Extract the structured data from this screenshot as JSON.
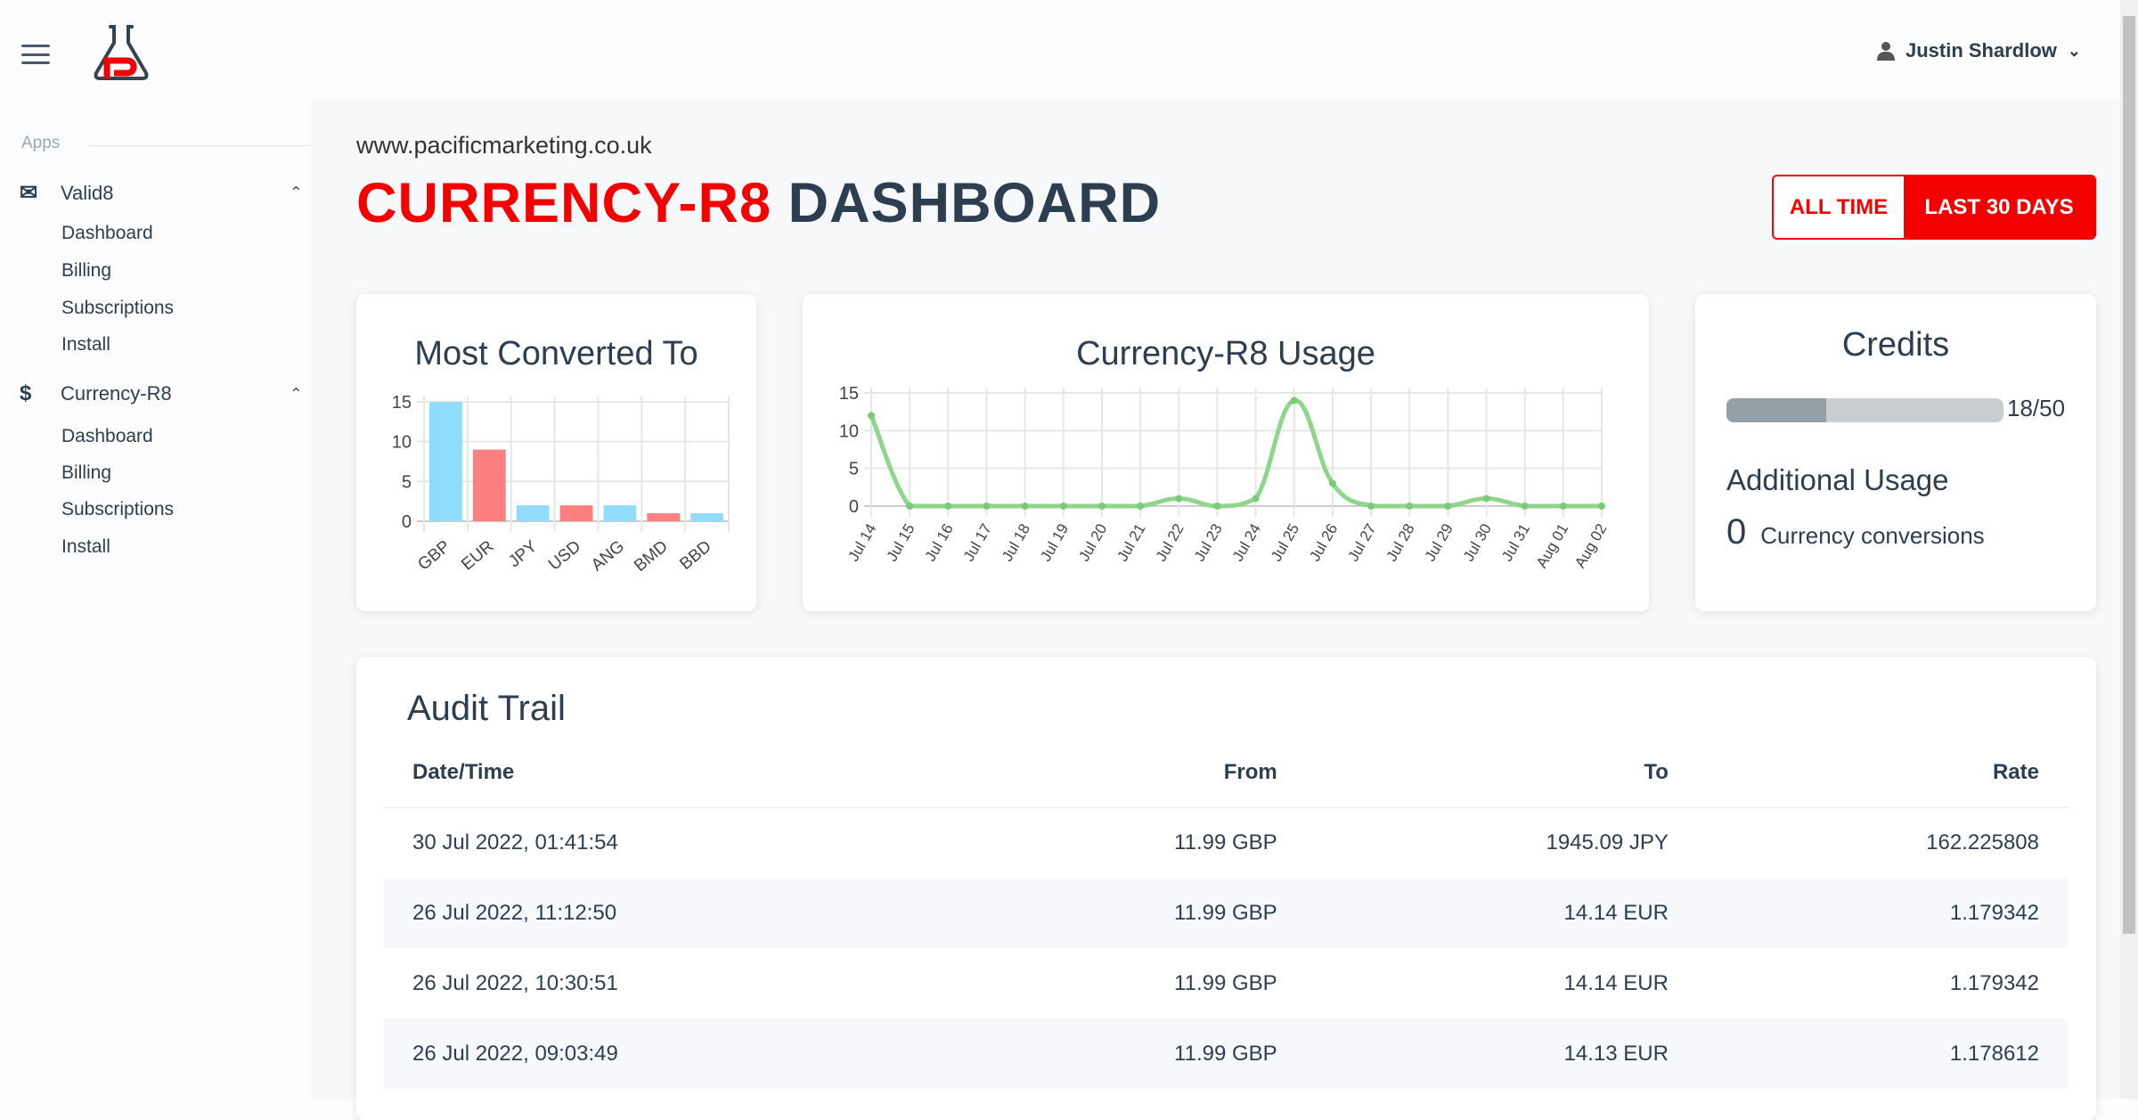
{
  "header": {
    "user_name": "Justin Shardlow",
    "logo_letter": "P"
  },
  "sidebar": {
    "section_label": "Apps",
    "groups": [
      {
        "label": "Valid8",
        "icon": "envelope-open-icon",
        "items": [
          "Dashboard",
          "Billing",
          "Subscriptions",
          "Install"
        ]
      },
      {
        "label": "Currency-R8",
        "icon": "dollar-icon",
        "items": [
          "Dashboard",
          "Billing",
          "Subscriptions",
          "Install"
        ]
      }
    ]
  },
  "page": {
    "site": "www.pacificmarketing.co.uk",
    "title_accent": "CURRENCY-R8",
    "title_rest": " DASHBOARD",
    "filters": {
      "all_time": "ALL TIME",
      "last_30": "LAST 30 DAYS",
      "active": "LAST 30 DAYS"
    }
  },
  "colors": {
    "accent": "#f50000",
    "text": "#2c3e50",
    "bar_blue": "#8fdcfd",
    "bar_red": "#fd7f7f",
    "line_green": "#8ed68a"
  },
  "credits": {
    "title": "Credits",
    "used": 18,
    "total": 50,
    "label": "18/50",
    "additional_title": "Additional Usage",
    "additional_count": "0",
    "additional_unit": "Currency conversions"
  },
  "chart_data": [
    {
      "type": "bar",
      "title": "Most Converted To",
      "categories": [
        "GBP",
        "EUR",
        "JPY",
        "USD",
        "ANG",
        "BMD",
        "BBD"
      ],
      "values": [
        15,
        9,
        2,
        2,
        2,
        1,
        1
      ],
      "ylim": [
        0,
        15
      ],
      "yticks": [
        "0",
        "5",
        "10",
        "15"
      ],
      "grid": true
    },
    {
      "type": "line",
      "title": "Currency-R8 Usage",
      "categories": [
        "Jul 14",
        "Jul 15",
        "Jul 16",
        "Jul 17",
        "Jul 18",
        "Jul 19",
        "Jul 20",
        "Jul 21",
        "Jul 22",
        "Jul 23",
        "Jul 24",
        "Jul 25",
        "Jul 26",
        "Jul 27",
        "Jul 28",
        "Jul 29",
        "Jul 30",
        "Jul 31",
        "Aug 01",
        "Aug 02"
      ],
      "values": [
        12,
        0,
        0,
        0,
        0,
        0,
        0,
        0,
        1,
        0,
        1,
        14,
        3,
        0,
        0,
        0,
        1,
        0,
        0,
        0
      ],
      "ylim": [
        0,
        15
      ],
      "yticks": [
        "0",
        "5",
        "10",
        "15"
      ],
      "grid": true
    }
  ],
  "audit": {
    "title": "Audit Trail",
    "columns": [
      "Date/Time",
      "From",
      "To",
      "Rate"
    ],
    "rows": [
      [
        "30 Jul 2022, 01:41:54",
        "11.99 GBP",
        "1945.09 JPY",
        "162.225808"
      ],
      [
        "26 Jul 2022, 11:12:50",
        "11.99 GBP",
        "14.14 EUR",
        "1.179342"
      ],
      [
        "26 Jul 2022, 10:30:51",
        "11.99 GBP",
        "14.14 EUR",
        "1.179342"
      ],
      [
        "26 Jul 2022, 09:03:49",
        "11.99 GBP",
        "14.13 EUR",
        "1.178612"
      ]
    ]
  }
}
